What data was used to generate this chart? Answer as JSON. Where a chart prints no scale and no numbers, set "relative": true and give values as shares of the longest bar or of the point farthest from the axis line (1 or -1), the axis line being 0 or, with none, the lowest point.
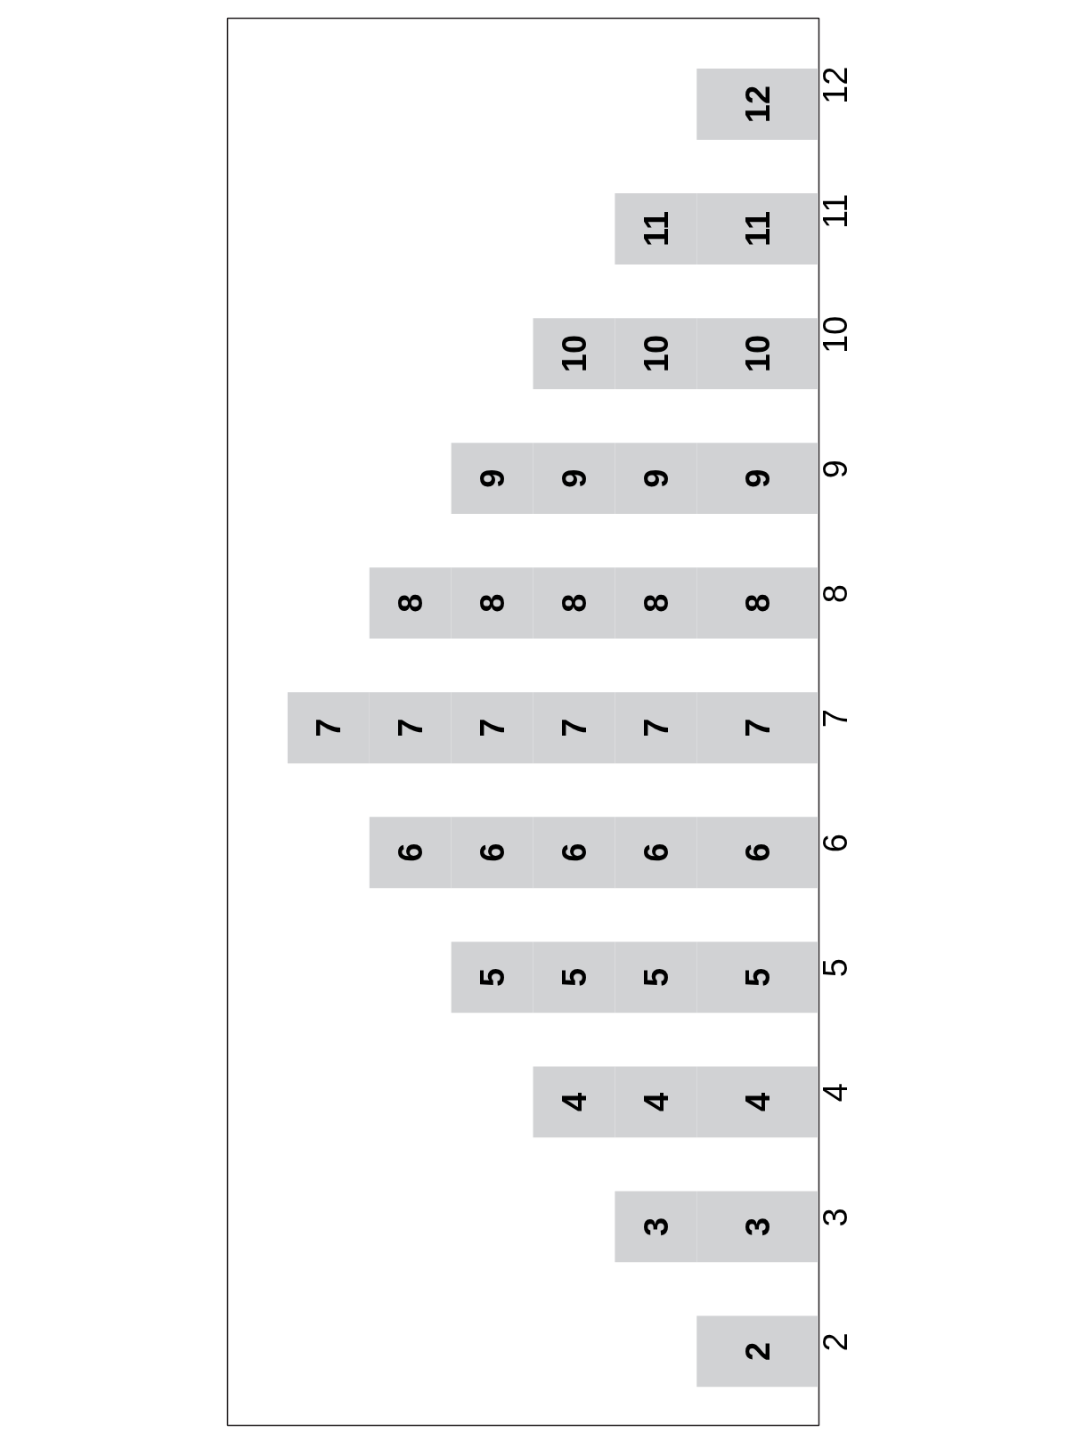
{
  "chart_data": {
    "type": "bar",
    "orientation": "horizontal",
    "stacked": true,
    "relative": true,
    "categories": [
      "12",
      "11",
      "10",
      "9",
      "8",
      "7",
      "6",
      "5",
      "4",
      "3",
      "2"
    ],
    "series": [
      {
        "color": "#d1d2d4",
        "values": [
          0.23,
          0.23,
          0.23,
          0.23,
          0.23,
          0.23,
          0.23,
          0.23,
          0.23,
          0.23,
          0.23
        ]
      },
      {
        "color": "#d1d2d4",
        "values": [
          null,
          0.154,
          0.154,
          0.154,
          0.154,
          0.154,
          0.154,
          0.154,
          0.154,
          0.154,
          null
        ]
      },
      {
        "color": "#d1d2d4",
        "values": [
          null,
          null,
          0.154,
          0.154,
          0.154,
          0.154,
          0.154,
          0.154,
          0.154,
          null,
          null
        ]
      },
      {
        "color": "#d1d2d4",
        "values": [
          null,
          null,
          null,
          0.154,
          0.154,
          0.154,
          0.154,
          0.154,
          null,
          null,
          null
        ]
      },
      {
        "color": "#d1d2d4",
        "values": [
          null,
          null,
          null,
          null,
          0.154,
          0.154,
          0.154,
          null,
          null,
          null,
          null
        ]
      },
      {
        "color": "#d1d2d4",
        "values": [
          null,
          null,
          null,
          null,
          null,
          0.154,
          null,
          null,
          null,
          null,
          null
        ]
      }
    ],
    "annotations": [
      "12",
      "11",
      "11",
      "10",
      "10",
      "10",
      "9",
      "9",
      "9",
      "9",
      "8",
      "8",
      "8",
      "8",
      "8",
      "7",
      "7",
      "7",
      "7",
      "7",
      "7",
      "6",
      "6",
      "6",
      "6",
      "6",
      "5",
      "5",
      "5",
      "5",
      "4",
      "4",
      "4",
      "3",
      "3",
      "2"
    ]
  }
}
